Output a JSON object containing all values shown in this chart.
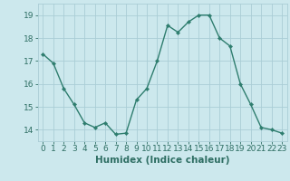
{
  "x": [
    0,
    1,
    2,
    3,
    4,
    5,
    6,
    7,
    8,
    9,
    10,
    11,
    12,
    13,
    14,
    15,
    16,
    17,
    18,
    19,
    20,
    21,
    22,
    23
  ],
  "y": [
    17.3,
    16.9,
    15.8,
    15.1,
    14.3,
    14.1,
    14.3,
    13.8,
    13.85,
    15.3,
    15.8,
    17.0,
    18.55,
    18.25,
    18.7,
    19.0,
    19.0,
    18.0,
    17.65,
    16.0,
    15.1,
    14.1,
    14.0,
    13.85
  ],
  "line_color": "#2e7d6e",
  "marker": "D",
  "marker_size": 2.2,
  "bg_color": "#cce8ed",
  "grid_color": "#aacdd6",
  "xlabel": "Humidex (Indice chaleur)",
  "ylim": [
    13.5,
    19.5
  ],
  "xlim": [
    -0.5,
    23.5
  ],
  "yticks": [
    14,
    15,
    16,
    17,
    18,
    19
  ],
  "xticks": [
    0,
    1,
    2,
    3,
    4,
    5,
    6,
    7,
    8,
    9,
    10,
    11,
    12,
    13,
    14,
    15,
    16,
    17,
    18,
    19,
    20,
    21,
    22,
    23
  ],
  "font_color": "#2e6e63",
  "font_size": 6.5,
  "xlabel_fontsize": 7.5,
  "line_width": 1.0,
  "tick_color": "#2e6e63"
}
